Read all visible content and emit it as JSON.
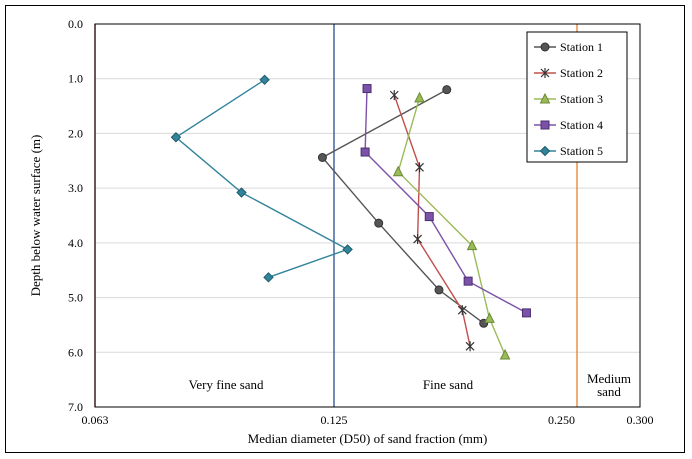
{
  "chart_data": {
    "type": "line",
    "xlabel": "Median diameter (D50) of sand fraction (mm)",
    "ylabel": "Depth below water surface (m)",
    "xlim": [
      0.063,
      0.3
    ],
    "ylim": [
      0,
      7
    ],
    "y_inverted": true,
    "x_ticks": [
      "0.063",
      "0.125",
      "0.250",
      "0.300"
    ],
    "y_ticks": [
      "0.0",
      "1.0",
      "2.0",
      "3.0",
      "4.0",
      "5.0",
      "6.0",
      "7.0"
    ],
    "grid": "horizontal",
    "legend_position": "top-right",
    "reference_lines": [
      {
        "x": 0.063,
        "color": "#a0303a"
      },
      {
        "x": 0.125,
        "color": "#3a5a9a"
      },
      {
        "x": 0.25,
        "color": "#e8883a"
      }
    ],
    "zones": [
      "Very fine sand",
      "Fine sand",
      "Medium sand"
    ],
    "series": [
      {
        "name": "Station 1",
        "color": "#555555",
        "marker": "circle",
        "points": [
          [
            0.183,
            1.2
          ],
          [
            0.122,
            2.44
          ],
          [
            0.148,
            3.64
          ],
          [
            0.179,
            4.86
          ],
          [
            0.202,
            5.47
          ]
        ]
      },
      {
        "name": "Station 2",
        "color": "#c0504d",
        "marker": "asterisk",
        "points": [
          [
            0.156,
            1.3
          ],
          [
            0.169,
            2.62
          ],
          [
            0.168,
            3.93
          ],
          [
            0.191,
            5.23
          ],
          [
            0.195,
            5.89
          ]
        ]
      },
      {
        "name": "Station 3",
        "color": "#9bbb59",
        "marker": "triangle",
        "points": [
          [
            0.169,
            1.35
          ],
          [
            0.158,
            2.7
          ],
          [
            0.196,
            4.05
          ],
          [
            0.205,
            5.38
          ],
          [
            0.213,
            6.05
          ]
        ]
      },
      {
        "name": "Station 4",
        "color": "#7b52a8",
        "marker": "square",
        "points": [
          [
            0.142,
            1.18
          ],
          [
            0.141,
            2.34
          ],
          [
            0.174,
            3.52
          ],
          [
            0.194,
            4.7
          ],
          [
            0.224,
            5.28
          ]
        ]
      },
      {
        "name": "Station 5",
        "color": "#31849b",
        "marker": "diamond",
        "points": [
          [
            0.107,
            1.02
          ],
          [
            0.084,
            2.07
          ],
          [
            0.101,
            3.08
          ],
          [
            0.132,
            4.12
          ],
          [
            0.108,
            4.63
          ]
        ]
      }
    ]
  }
}
